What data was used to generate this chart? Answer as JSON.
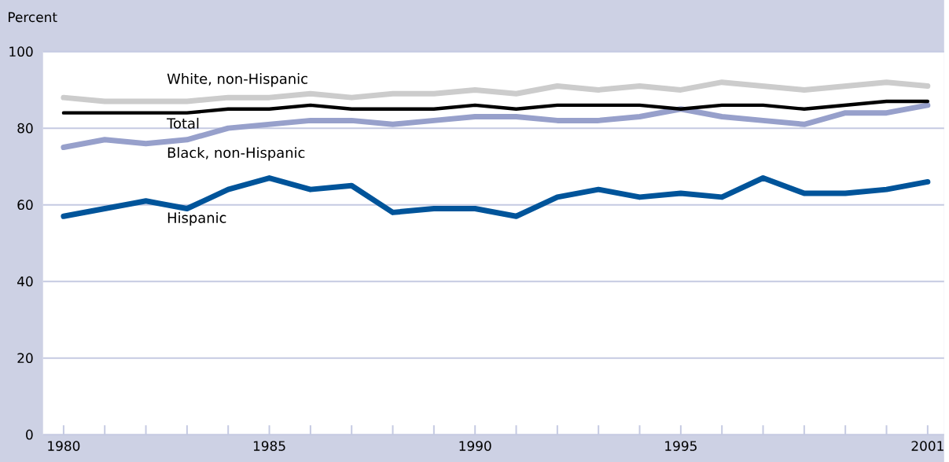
{
  "chart_data": {
    "type": "line",
    "ylabel": "Percent",
    "x": [
      1980,
      1981,
      1982,
      1983,
      1984,
      1985,
      1986,
      1987,
      1988,
      1989,
      1990,
      1991,
      1992,
      1993,
      1994,
      1995,
      1996,
      1997,
      1998,
      1999,
      2000,
      2001
    ],
    "xlim": [
      1979.5,
      2001.4
    ],
    "ylim": [
      0,
      100
    ],
    "yticks": [
      0,
      20,
      40,
      60,
      80,
      100
    ],
    "xticks": [
      1980,
      {
        "value": 1981,
        "label": null
      },
      {
        "value": 1982,
        "label": null
      },
      {
        "value": 1983,
        "label": null
      },
      {
        "value": 1984,
        "label": null
      },
      1985,
      {
        "value": 1986,
        "label": null
      },
      {
        "value": 1987,
        "label": null
      },
      {
        "value": 1988,
        "label": null
      },
      {
        "value": 1989,
        "label": null
      },
      1990,
      {
        "value": 1991,
        "label": null
      },
      {
        "value": 1992,
        "label": null
      },
      {
        "value": 1993,
        "label": null
      },
      {
        "value": 1994,
        "label": null
      },
      1995,
      {
        "value": 1996,
        "label": null
      },
      {
        "value": 1997,
        "label": null
      },
      {
        "value": 1998,
        "label": null
      },
      {
        "value": 1999,
        "label": null
      },
      {
        "value": 2000,
        "label": null
      },
      2001
    ],
    "grid": "y",
    "legend": false,
    "marker": "none",
    "line_style": "solid",
    "series": [
      {
        "name": "White, non-Hispanic",
        "color": "#cccccc",
        "values": [
          88,
          87,
          87,
          87,
          88,
          88,
          89,
          88,
          89,
          89,
          90,
          89,
          91,
          90,
          91,
          90,
          92,
          91,
          90,
          91,
          92,
          91
        ]
      },
      {
        "name": "Total",
        "color": "#000000",
        "values": [
          84,
          84,
          84,
          84,
          85,
          85,
          86,
          85,
          85,
          85,
          86,
          85,
          86,
          86,
          86,
          85,
          86,
          86,
          85,
          86,
          87,
          87
        ]
      },
      {
        "name": "Black, non-Hispanic",
        "color": "#97a0cb",
        "values": [
          75,
          77,
          76,
          77,
          80,
          81,
          82,
          82,
          81,
          82,
          83,
          83,
          82,
          82,
          83,
          85,
          83,
          82,
          81,
          84,
          84,
          86
        ]
      },
      {
        "name": "Hispanic",
        "color": "#00549a",
        "values": [
          57,
          59,
          61,
          59,
          64,
          67,
          64,
          65,
          58,
          59,
          59,
          57,
          62,
          64,
          62,
          63,
          62,
          67,
          63,
          63,
          64,
          66
        ]
      }
    ]
  }
}
